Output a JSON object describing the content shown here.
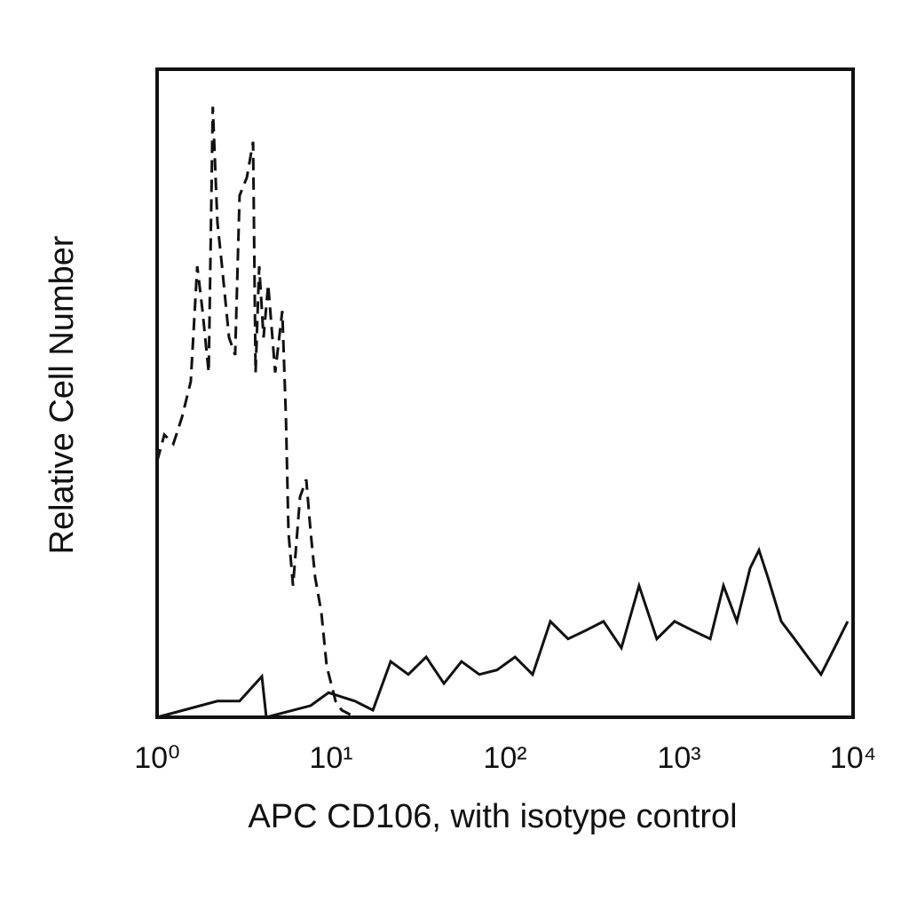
{
  "chart_data": {
    "type": "line",
    "xlabel": "APC CD106, with isotype control",
    "ylabel": "Relative Cell Number",
    "xscale": "log",
    "xlim": [
      1,
      10000
    ],
    "ylim": [
      0,
      100
    ],
    "xticks": [
      {
        "value": 1,
        "label": "10⁰"
      },
      {
        "value": 10,
        "label": "10¹"
      },
      {
        "value": 100,
        "label": "10²"
      },
      {
        "value": 1000,
        "label": "10³"
      },
      {
        "value": 10000,
        "label": "10⁴"
      }
    ],
    "grid": false,
    "series": [
      {
        "color": "#111111",
        "dash": "dashed",
        "x": [
          1,
          1.1,
          1.24,
          1.39,
          1.56,
          1.7,
          1.82,
          1.98,
          2.09,
          2.22,
          2.36,
          2.59,
          2.81,
          2.98,
          3.28,
          3.56,
          3.68,
          3.86,
          4.09,
          4.35,
          4.77,
          5.24,
          5.5,
          5.69,
          6.04,
          6.63,
          7.2,
          7.63,
          8.09,
          8.79,
          9.43,
          10.0,
          10.6,
          11.5,
          12.9,
          13.7
        ],
        "values": [
          39.5,
          43.6,
          42.2,
          46.3,
          51.8,
          69.6,
          62.9,
          53.2,
          94.2,
          76.4,
          69.6,
          58.6,
          55.9,
          80.5,
          83.3,
          88.8,
          53.2,
          69.6,
          58.6,
          66.8,
          53.2,
          62.7,
          46.3,
          28.5,
          20.3,
          34.0,
          36.7,
          28.5,
          21.6,
          16.2,
          7.9,
          5.2,
          2.5,
          1.1,
          0.4,
          0
        ]
      },
      {
        "color": "#111111",
        "dash": "solid",
        "x": [
          1,
          2.22,
          2.98,
          4.0,
          4.24,
          7.63,
          9.66,
          13.7,
          17.4,
          22.0,
          27.8,
          35.2,
          44.5,
          56.2,
          71.1,
          89.9,
          114,
          144,
          182,
          230,
          291,
          368,
          466,
          589,
          745,
          942,
          1194,
          1510,
          1799,
          2148,
          2559,
          2878,
          3236,
          3864,
          4603,
          5495,
          6546,
          7816,
          9311
        ],
        "values": [
          0,
          2.5,
          2.5,
          6.3,
          0,
          1.8,
          3.8,
          2.5,
          1.1,
          8.6,
          6.6,
          9.3,
          5.2,
          8.6,
          6.6,
          7.3,
          9.3,
          6.6,
          14.8,
          12.1,
          13.4,
          14.8,
          10.7,
          20.3,
          12.1,
          14.8,
          13.4,
          12.1,
          20.3,
          14.8,
          23.0,
          25.8,
          21.6,
          14.8,
          12.1,
          9.3,
          6.6,
          10.7,
          14.8
        ]
      }
    ]
  }
}
